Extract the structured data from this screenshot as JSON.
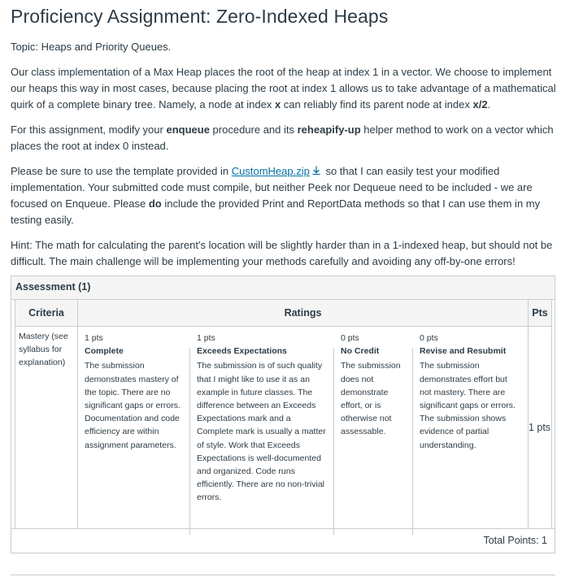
{
  "title": "Proficiency Assignment: Zero-Indexed Heaps",
  "topic": "Topic: Heaps and Priority Queues.",
  "p1": {
    "a": "Our class implementation of a Max Heap places the root of the heap at index 1 in a vector. We choose to implement our heaps this way in most cases, because placing the root at index 1 allows us to take advantage of a mathematical quirk of a complete binary tree. Namely, a node at index ",
    "b": "x",
    "c": " can reliably find its parent node at index ",
    "d": "x/2",
    "e": "."
  },
  "p2": {
    "a": "For this assignment, modify your ",
    "b": "enqueue",
    "c": " procedure and its ",
    "d": "reheapify-up",
    "e": " helper method to work on a vector which places the root at index 0 instead."
  },
  "p3": {
    "a": "Please be sure to use the template provided in ",
    "link": "CustomHeap.zip",
    "icon": "download-icon",
    "b": " so that I can easily test your modified implementation. Your submitted code must compile, but neither Peek nor Dequeue need to be included - we are focused on Enqueue. Please ",
    "c": "do",
    "d": " include the provided Print and ReportData methods so that I can use them in my testing easily."
  },
  "hint": "Hint: The math for calculating the parent's location will be slightly harder than in a 1-indexed heap, but should not be difficult. The main challenge will be implementing your methods carefully and avoiding any off-by-one errors!",
  "rubric": {
    "heading": "Assessment (1)",
    "col_criteria": "Criteria",
    "col_ratings": "Ratings",
    "col_pts": "Pts",
    "criterion": "Mastery (see syllabus for explanation)",
    "ratings": [
      {
        "pts": "1 pts",
        "title": "Complete",
        "desc": "The submission demonstrates mastery of the topic. There are no significant gaps or errors. Documentation and code efficiency are within assignment parameters."
      },
      {
        "pts": "1 pts",
        "title": "Exceeds Expectations",
        "desc": "The submission is of such quality that I might like to use it as an example in future classes. The difference between an Exceeds Expectations mark and a Complete mark is usually a matter of style. Work that Exceeds Expectations is well-documented and organized. Code runs efficiently. There are no non-trivial errors."
      },
      {
        "pts": "0 pts",
        "title": "No Credit",
        "desc": "The submission does not demonstrate effort, or is otherwise not assessable."
      },
      {
        "pts": "0 pts",
        "title": "Revise and Resubmit",
        "desc": "The submission demonstrates effort but not mastery. There are significant gaps or errors. The submission shows evidence of partial understanding."
      }
    ],
    "row_pts": "1 pts",
    "total": "Total Points: 1"
  }
}
